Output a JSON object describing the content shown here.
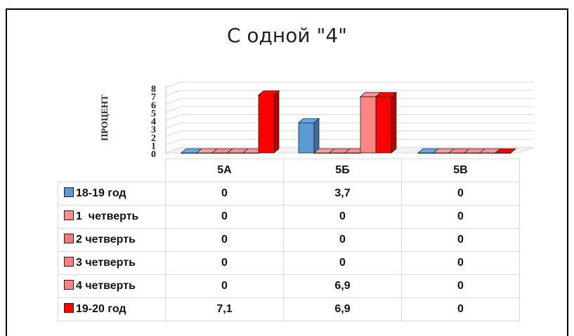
{
  "chart_data": {
    "type": "bar",
    "title": "С одной \"4\"",
    "ylabel": "ПРОЦЕНТ",
    "ylim": [
      0,
      8
    ],
    "yticks": [
      "0",
      "1",
      "2",
      "3",
      "4",
      "5",
      "6",
      "7",
      "8"
    ],
    "categories": [
      "5А",
      "5Б",
      "5В"
    ],
    "series": [
      {
        "name": "18-19 год",
        "values": [
          0,
          3.7,
          0
        ],
        "labels": [
          "0",
          "3,7",
          "0"
        ],
        "color": "#5b9bd5"
      },
      {
        "name": "1  четверть",
        "values": [
          0,
          0,
          0
        ],
        "labels": [
          "0",
          "0",
          "0"
        ],
        "color": "#ff8f8f"
      },
      {
        "name": "2 четверть",
        "values": [
          0,
          0,
          0
        ],
        "labels": [
          "0",
          "0",
          "0"
        ],
        "color": "#f07b7b"
      },
      {
        "name": "3 четверть",
        "values": [
          0,
          0,
          0
        ],
        "labels": [
          "0",
          "0",
          "0"
        ],
        "color": "#ff8080"
      },
      {
        "name": "4 четверть",
        "values": [
          0,
          6.9,
          0
        ],
        "labels": [
          "0",
          "6,9",
          "0"
        ],
        "color": "#ff8585"
      },
      {
        "name": "19-20 год",
        "values": [
          7.1,
          6.9,
          0
        ],
        "labels": [
          "7,1",
          "6,9",
          "0"
        ],
        "color": "#ff0000"
      }
    ],
    "grid": true,
    "legend": "data table"
  }
}
